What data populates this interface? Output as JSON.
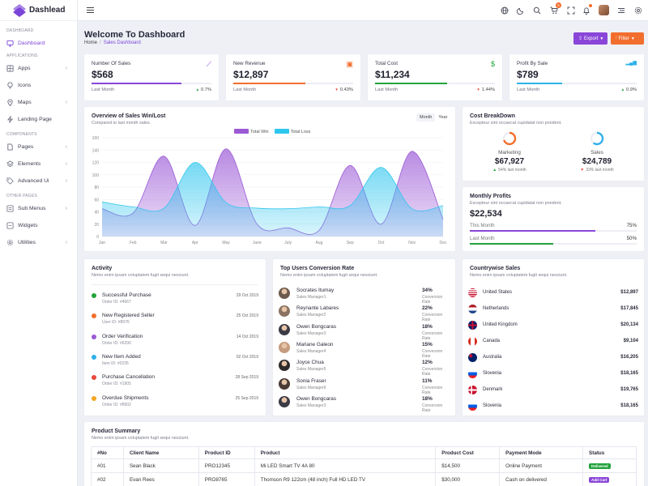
{
  "brand": {
    "name": "Dashlead"
  },
  "sidebar": {
    "sections": [
      "Dashboard",
      "Applications",
      "Components",
      "Other Pages"
    ],
    "items": [
      {
        "label": "Dashboard",
        "icon": "monitor-icon"
      },
      {
        "label": "Apps",
        "icon": "apps-icon"
      },
      {
        "label": "Icons",
        "icon": "lightbulb-icon"
      },
      {
        "label": "Maps",
        "icon": "map-pin-icon"
      },
      {
        "label": "Landing Page",
        "icon": "bolt-icon"
      },
      {
        "label": "Pages",
        "icon": "pages-icon"
      },
      {
        "label": "Elements",
        "icon": "layers-icon"
      },
      {
        "label": "Advanced Ui",
        "icon": "tag-icon"
      },
      {
        "label": "Sub Menus",
        "icon": "list-icon"
      },
      {
        "label": "Widgets",
        "icon": "widget-icon"
      },
      {
        "label": "Utilities",
        "icon": "settings-icon"
      }
    ]
  },
  "topbar": {
    "cart_count": "5"
  },
  "header": {
    "title": "Welcome To Dashboard",
    "crumb_home": "Home",
    "crumb_current": "Sales Dashboard",
    "export_label": "Export",
    "filter_label": "Filter"
  },
  "stats": [
    {
      "label": "Number Of Sales",
      "value": "$568",
      "foot": "Last Month",
      "change": "0.7%",
      "dir": "up",
      "color": "#8a46d8",
      "progress": 0.75
    },
    {
      "label": "New Revenue",
      "value": "$12,897",
      "foot": "Last Month",
      "change": "0.43%",
      "dir": "down",
      "color": "#f26e2d",
      "progress": 0.6
    },
    {
      "label": "Total Cost",
      "value": "$11,234",
      "foot": "Last Month",
      "change": "1.44%",
      "dir": "down",
      "color": "#22a33c",
      "progress": 0.6
    },
    {
      "label": "Profit By Sale",
      "value": "$789",
      "foot": "Last Month",
      "change": "0.9%",
      "dir": "up",
      "color": "#2db2ea",
      "progress": 0.38
    }
  ],
  "sales_chart": {
    "title": "Overview of Sales Win/Lost",
    "subtitle": "Compared to last month sales.",
    "tab_month": "Month",
    "tab_year": "Year"
  },
  "chart_data": {
    "type": "area",
    "categories": [
      "Jan",
      "Feb",
      "Mar",
      "Apr",
      "May",
      "June",
      "July",
      "Aug",
      "Sep",
      "Oct",
      "Nov",
      "Dec"
    ],
    "ylim": [
      0,
      160
    ],
    "yticks": [
      0,
      20,
      40,
      60,
      80,
      100,
      120,
      140,
      160
    ],
    "series": [
      {
        "name": "Total Win",
        "color": "#9b59d6",
        "values": [
          45,
          38,
          130,
          18,
          142,
          20,
          14,
          10,
          115,
          20,
          138,
          28
        ]
      },
      {
        "name": "Total Loss",
        "color": "#2fc6ee",
        "values": [
          56,
          48,
          46,
          120,
          55,
          46,
          45,
          48,
          50,
          112,
          45,
          50
        ]
      }
    ]
  },
  "cost": {
    "title": "Cost BreakDown",
    "subtitle": "Excepteur sint occaecat cupidatat non proident.",
    "items": [
      {
        "label": "Marketing",
        "value": "$67,927",
        "change": "54% last month",
        "dir": "up",
        "color": "#f26e2d",
        "pct": 0.7
      },
      {
        "label": "Sales",
        "value": "$24,789",
        "change": "33% last month",
        "dir": "down",
        "color": "#2fb0ea",
        "pct": 0.6
      }
    ]
  },
  "profits": {
    "title": "Monthly Profits",
    "subtitle": "Excepteur sint occaecat cupidatat non proident.",
    "value": "$22,534",
    "rows": [
      {
        "label": "This Month",
        "pct": "75%",
        "frac": 0.75,
        "color": "#8a46d8"
      },
      {
        "label": "Last Month",
        "pct": "50%",
        "frac": 0.5,
        "color": "#22a33c"
      }
    ]
  },
  "activity": {
    "title": "Activity",
    "subtitle": "Nemo enim ipsam voluptatem fugit sequi nesciunt.",
    "items": [
      {
        "title": "Successful Purchase",
        "sub": "Order ID: #4567",
        "date": "29 Oct 2019",
        "color": "#22a33c"
      },
      {
        "title": "New Registered Seller",
        "sub": "User ID: #8976",
        "date": "25 Oct 2019",
        "color": "#f26e2d"
      },
      {
        "title": "Order Verification",
        "sub": "Order ID: #6290",
        "date": "14 Oct 2019",
        "color": "#9b59d6"
      },
      {
        "title": "New Item Added",
        "sub": "Item ID: #0235",
        "date": "02 Oct 2019",
        "color": "#2fb0ea"
      },
      {
        "title": "Purchase Cancellation",
        "sub": "Order ID: #1905",
        "date": "28 Sep 2019",
        "color": "#e8483b"
      },
      {
        "title": "Overdue Shipments",
        "sub": "Order ID: #8902",
        "date": "25 Sep 2019",
        "color": "#f5a623"
      }
    ]
  },
  "users": {
    "title": "Top Users Conversion Rate",
    "subtitle": "Nemo enim ipsam voluptatem fugit sequi nesciunt.",
    "items": [
      {
        "name": "Socrates Itumay",
        "role": "Sales Manager1",
        "pct": "34%",
        "label": "Conversion Rate",
        "color": "#6d5a4e"
      },
      {
        "name": "Reynante Labares",
        "role": "Sales Manager2",
        "pct": "22%",
        "label": "Conversion Rate",
        "color": "#8a7262"
      },
      {
        "name": "Owen Bongcaras",
        "role": "Sales Manager3",
        "pct": "18%",
        "label": "Conversion Rate",
        "color": "#3b3b45"
      },
      {
        "name": "Mariane Galeon",
        "role": "Sales Manager4",
        "pct": "15%",
        "label": "Conversion Rate",
        "color": "#c69c7e"
      },
      {
        "name": "Joyce Chua",
        "role": "Sales Manager5",
        "pct": "12%",
        "label": "Conversion Rate",
        "color": "#2f2a2a"
      },
      {
        "name": "Sonia Fraser",
        "role": "Sales Manager6",
        "pct": "11%",
        "label": "Conversion Rate",
        "color": "#4a3a34"
      },
      {
        "name": "Owen Bongcaras",
        "role": "Sales Manager3",
        "pct": "18%",
        "label": "Conversion Rate",
        "color": "#3b3b45"
      }
    ]
  },
  "countries": {
    "title": "Countrywise Sales",
    "subtitle": "Nemo enim ipsam voluptatem fugit sequi nesciunt.",
    "items": [
      {
        "name": "United States",
        "value": "$12,897",
        "flag": "us"
      },
      {
        "name": "Netherlands",
        "value": "$17,845",
        "flag": "nl"
      },
      {
        "name": "United Kingdom",
        "value": "$20,134",
        "flag": "gb"
      },
      {
        "name": "Canada",
        "value": "$9,104",
        "flag": "ca"
      },
      {
        "name": "Australia",
        "value": "$16,205",
        "flag": "au"
      },
      {
        "name": "Slovenia",
        "value": "$18,165",
        "flag": "si"
      },
      {
        "name": "Denmark",
        "value": "$19,765",
        "flag": "dk"
      },
      {
        "name": "Slovenia",
        "value": "$18,165",
        "flag": "si"
      }
    ]
  },
  "products": {
    "title": "Product Summary",
    "subtitle": "Nemo enim ipsam voluptatem fugit sequi nesciunt.",
    "headers": [
      "#No",
      "Client Name",
      "Product ID",
      "Product",
      "Product Cost",
      "Payment Mode",
      "Status"
    ],
    "rows": [
      {
        "no": "#01",
        "client": "Sean Black",
        "pid": "PRO12345",
        "product": "Mi LED Smart TV 4A 80",
        "cost": "$14,500",
        "mode": "Online Payment",
        "status": "Delivered",
        "status_color": "#22a33c"
      },
      {
        "no": "#02",
        "client": "Evan Rees",
        "pid": "PRO8765",
        "product": "Thomson R9 122cm (48 inch) Full HD LED TV",
        "cost": "$30,000",
        "mode": "Cash on delivered",
        "status": "Add Cart",
        "status_color": "#8a46d8"
      }
    ]
  }
}
